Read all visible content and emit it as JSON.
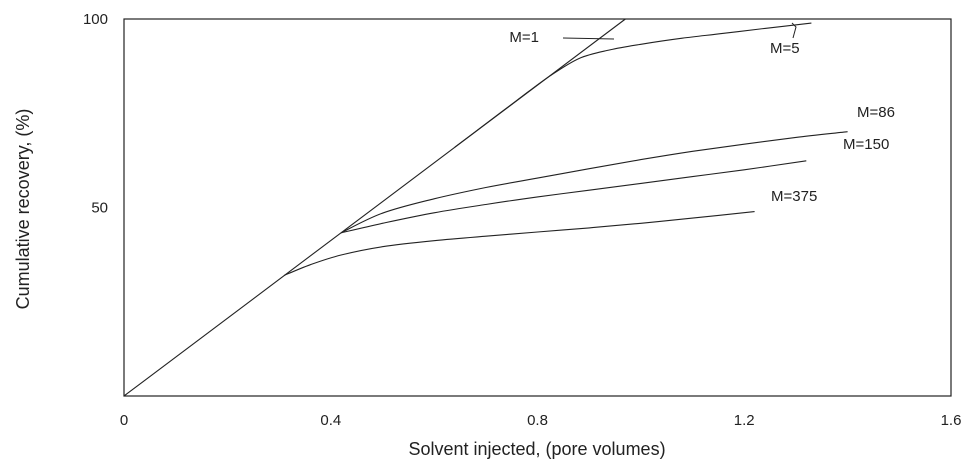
{
  "chart_data": {
    "type": "line",
    "title": "",
    "xlabel": "Solvent injected, (pore volumes)",
    "ylabel": "Cumulative recovery, (%)",
    "xlim": [
      0,
      1.6
    ],
    "ylim": [
      0,
      100
    ],
    "x_ticks": [
      {
        "value": 0,
        "label": "0"
      },
      {
        "value": 0.4,
        "label": "0.4"
      },
      {
        "value": 0.8,
        "label": "0.8"
      },
      {
        "value": 1.2,
        "label": "1.2"
      },
      {
        "value": 1.6,
        "label": "1.6"
      }
    ],
    "y_ticks": [
      {
        "value": 50,
        "label": "50"
      },
      {
        "value": 100,
        "label": "100"
      }
    ],
    "grid": false,
    "legend": "none",
    "series": [
      {
        "name": "M=1",
        "x": [
          0,
          0.97
        ],
        "y": [
          0,
          100
        ]
      },
      {
        "name": "M=5",
        "x": [
          0.64,
          0.7,
          0.76,
          0.82,
          0.88,
          0.94,
          1.0,
          1.08,
          1.16,
          1.24,
          1.33
        ],
        "y": [
          66,
          72.2,
          78.4,
          84.5,
          89.5,
          91.8,
          93.3,
          94.9,
          96.2,
          97.5,
          98.9
        ]
      },
      {
        "name": "M=86",
        "x": [
          0.42,
          0.5,
          0.6,
          0.7,
          0.8,
          0.9,
          1.0,
          1.1,
          1.2,
          1.3,
          1.4
        ],
        "y": [
          43.3,
          48.5,
          52.3,
          55.3,
          57.8,
          60.3,
          62.7,
          64.9,
          66.8,
          68.6,
          70.1
        ]
      },
      {
        "name": "M=150",
        "x": [
          0.42,
          0.5,
          0.6,
          0.7,
          0.8,
          0.9,
          1.0,
          1.1,
          1.2,
          1.32
        ],
        "y": [
          43.3,
          45.8,
          48.6,
          50.8,
          52.8,
          54.6,
          56.4,
          58.2,
          60.0,
          62.4
        ]
      },
      {
        "name": "M=375",
        "x": [
          0.31,
          0.36,
          0.42,
          0.5,
          0.6,
          0.7,
          0.8,
          0.9,
          1.0,
          1.1,
          1.22
        ],
        "y": [
          32.0,
          34.8,
          37.4,
          39.6,
          41.2,
          42.4,
          43.5,
          44.6,
          45.8,
          47.2,
          48.9
        ]
      }
    ],
    "annotations": [
      {
        "text": "M=1",
        "target": "M=1"
      },
      {
        "text": "M=5",
        "target": "M=5"
      },
      {
        "text": "M=86",
        "target": "M=86"
      },
      {
        "text": "M=150",
        "target": "M=150"
      },
      {
        "text": "M=375",
        "target": "M=375"
      }
    ]
  }
}
